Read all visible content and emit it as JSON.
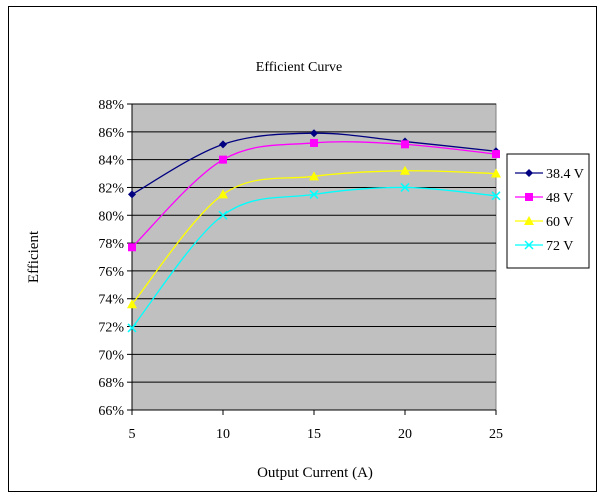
{
  "chart_data": {
    "type": "line",
    "title": "Efficient Curve",
    "xlabel": "Output Current (A)",
    "ylabel": "Efficient",
    "x": [
      5,
      10,
      15,
      20,
      25
    ],
    "xlim": [
      5,
      25
    ],
    "ylim": [
      66,
      88
    ],
    "yticks": [
      66,
      68,
      70,
      72,
      74,
      76,
      78,
      80,
      82,
      84,
      86,
      88
    ],
    "xtick_labels": [
      "5",
      "10",
      "15",
      "20",
      "25"
    ],
    "ytick_labels": [
      "66%",
      "68%",
      "70%",
      "72%",
      "74%",
      "76%",
      "78%",
      "80%",
      "82%",
      "84%",
      "86%",
      "88%"
    ],
    "legend_position": "right",
    "plot_background": "#c0c0c0",
    "grid": "horizontal",
    "series": [
      {
        "name": "38.4 V",
        "values": [
          81.5,
          85.1,
          85.9,
          85.3,
          84.6
        ],
        "color": "#000080",
        "marker": "diamond"
      },
      {
        "name": "48 V",
        "values": [
          77.7,
          84.0,
          85.2,
          85.1,
          84.4
        ],
        "color": "#ff00ff",
        "marker": "square"
      },
      {
        "name": "60 V",
        "values": [
          73.6,
          81.5,
          82.8,
          83.2,
          83.0
        ],
        "color": "#ffff00",
        "marker": "triangle"
      },
      {
        "name": "72 V",
        "values": [
          71.9,
          80.0,
          81.5,
          82.0,
          81.4
        ],
        "color": "#00ffff",
        "marker": "x"
      }
    ]
  }
}
